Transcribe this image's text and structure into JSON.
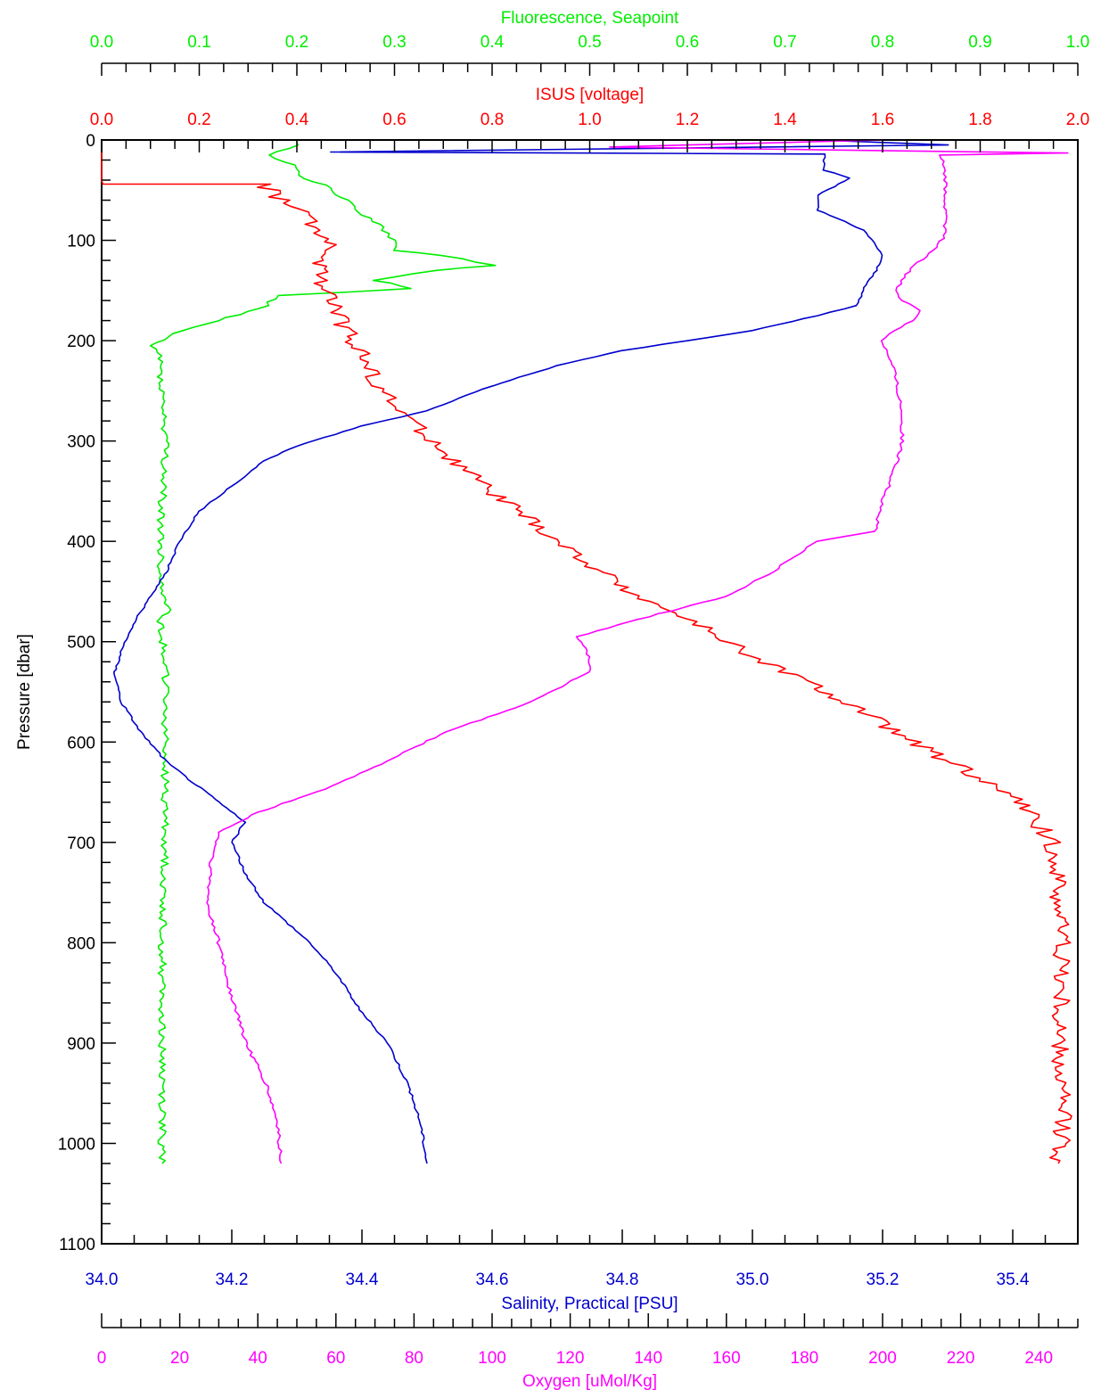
{
  "chart_data": {
    "type": "line",
    "orientation": "depth-profile",
    "grid": false,
    "yaxis": {
      "label": "Pressure [dbar]",
      "range": [
        0,
        1100
      ],
      "inverted": true,
      "ticks": [
        "0",
        "100",
        "200",
        "300",
        "400",
        "500",
        "600",
        "700",
        "800",
        "900",
        "1000",
        "1100"
      ],
      "tick_values": [
        0,
        100,
        200,
        300,
        400,
        500,
        600,
        700,
        800,
        900,
        1000,
        1100
      ],
      "minor_step": 20
    },
    "axes": {
      "fluorescence": {
        "label": "Fluorescence, Seapoint",
        "color": "#00ee00",
        "range": [
          0,
          1
        ],
        "ticks": [
          "0.0",
          "0.1",
          "0.2",
          "0.3",
          "0.4",
          "0.5",
          "0.6",
          "0.7",
          "0.8",
          "0.9",
          "1.0"
        ],
        "tick_values": [
          0,
          0.1,
          0.2,
          0.3,
          0.4,
          0.5,
          0.6,
          0.7,
          0.8,
          0.9,
          1.0
        ],
        "minor_step": 0.025
      },
      "isus": {
        "label": "ISUS [voltage]",
        "color": "#ff0000",
        "range": [
          0,
          2
        ],
        "ticks": [
          "0.0",
          "0.2",
          "0.4",
          "0.6",
          "0.8",
          "1.0",
          "1.2",
          "1.4",
          "1.6",
          "1.8",
          "2.0"
        ],
        "tick_values": [
          0,
          0.2,
          0.4,
          0.6,
          0.8,
          1.0,
          1.2,
          1.4,
          1.6,
          1.8,
          2.0
        ],
        "minor_step": 0.05
      },
      "salinity": {
        "label": "Salinity, Practical [PSU]",
        "color": "#0000cc",
        "range": [
          34.0,
          35.5
        ],
        "ticks": [
          "34.0",
          "34.2",
          "34.4",
          "34.6",
          "34.8",
          "35.0",
          "35.2",
          "35.4"
        ],
        "tick_values": [
          34.0,
          34.2,
          34.4,
          34.6,
          34.8,
          35.0,
          35.2,
          35.4
        ],
        "minor_step": 0.05
      },
      "oxygen": {
        "label": "Oxygen [uMol/Kg]",
        "color": "#ff00ff",
        "range": [
          0,
          250
        ],
        "ticks": [
          "0",
          "20",
          "40",
          "60",
          "80",
          "100",
          "120",
          "140",
          "160",
          "180",
          "200",
          "220",
          "240"
        ],
        "tick_values": [
          0,
          20,
          40,
          60,
          80,
          100,
          120,
          140,
          160,
          180,
          200,
          220,
          240
        ],
        "minor_step": 5
      }
    },
    "series": [
      {
        "axis": "fluorescence",
        "color": "#00ee00",
        "jitter": 0.004,
        "points": [
          [
            0.2,
            0
          ],
          [
            0.2,
            5
          ],
          [
            0.17,
            15
          ],
          [
            0.2,
            25
          ],
          [
            0.2,
            35
          ],
          [
            0.23,
            45
          ],
          [
            0.25,
            60
          ],
          [
            0.27,
            75
          ],
          [
            0.29,
            90
          ],
          [
            0.3,
            100
          ],
          [
            0.3,
            110
          ],
          [
            0.35,
            115
          ],
          [
            0.4,
            125
          ],
          [
            0.34,
            130
          ],
          [
            0.28,
            140
          ],
          [
            0.32,
            148
          ],
          [
            0.18,
            155
          ],
          [
            0.17,
            165
          ],
          [
            0.12,
            180
          ],
          [
            0.08,
            190
          ],
          [
            0.05,
            205
          ],
          [
            0.06,
            215
          ],
          [
            0.06,
            230
          ],
          [
            0.065,
            300
          ],
          [
            0.06,
            400
          ],
          [
            0.06,
            440
          ],
          [
            0.065,
            455
          ],
          [
            0.07,
            465
          ],
          [
            0.06,
            480
          ],
          [
            0.065,
            515
          ],
          [
            0.065,
            600
          ],
          [
            0.065,
            700
          ],
          [
            0.062,
            800
          ],
          [
            0.062,
            900
          ],
          [
            0.062,
            1000
          ],
          [
            0.062,
            1020
          ]
        ]
      },
      {
        "axis": "isus",
        "color": "#ff0000",
        "jitter": 0.02,
        "points": [
          [
            0,
            10
          ],
          [
            0,
            44
          ],
          [
            0.33,
            44
          ],
          [
            0.37,
            60
          ],
          [
            0.42,
            75
          ],
          [
            0.44,
            90
          ],
          [
            0.47,
            110
          ],
          [
            0.44,
            120
          ],
          [
            0.45,
            140
          ],
          [
            0.47,
            160
          ],
          [
            0.5,
            190
          ],
          [
            0.53,
            210
          ],
          [
            0.55,
            230
          ],
          [
            0.59,
            260
          ],
          [
            0.66,
            290
          ],
          [
            0.72,
            320
          ],
          [
            0.8,
            350
          ],
          [
            0.88,
            380
          ],
          [
            0.96,
            410
          ],
          [
            1.05,
            440
          ],
          [
            1.12,
            460
          ],
          [
            1.21,
            480
          ],
          [
            1.3,
            505
          ],
          [
            1.4,
            530
          ],
          [
            1.48,
            550
          ],
          [
            1.56,
            570
          ],
          [
            1.66,
            600
          ],
          [
            1.78,
            630
          ],
          [
            1.88,
            660
          ],
          [
            1.95,
            700
          ],
          [
            1.97,
            800
          ],
          [
            1.96,
            900
          ],
          [
            1.97,
            1000
          ],
          [
            1.96,
            1020
          ]
        ]
      },
      {
        "axis": "salinity",
        "color": "#0000cc",
        "jitter": 0.002,
        "points": [
          [
            35.1,
            0
          ],
          [
            35.3,
            5
          ],
          [
            34.35,
            12
          ],
          [
            35.11,
            14
          ],
          [
            35.11,
            30
          ],
          [
            35.15,
            38
          ],
          [
            35.1,
            55
          ],
          [
            35.1,
            70
          ],
          [
            35.13,
            78
          ],
          [
            35.17,
            90
          ],
          [
            35.19,
            105
          ],
          [
            35.2,
            115
          ],
          [
            35.19,
            130
          ],
          [
            35.17,
            150
          ],
          [
            35.16,
            165
          ],
          [
            35.1,
            175
          ],
          [
            35.0,
            190
          ],
          [
            34.9,
            200
          ],
          [
            34.8,
            210
          ],
          [
            34.7,
            225
          ],
          [
            34.6,
            245
          ],
          [
            34.5,
            270
          ],
          [
            34.4,
            285
          ],
          [
            34.3,
            305
          ],
          [
            34.25,
            320
          ],
          [
            34.2,
            345
          ],
          [
            34.15,
            370
          ],
          [
            34.12,
            400
          ],
          [
            34.1,
            430
          ],
          [
            34.07,
            460
          ],
          [
            34.05,
            480
          ],
          [
            34.03,
            510
          ],
          [
            34.02,
            530
          ],
          [
            34.03,
            560
          ],
          [
            34.06,
            590
          ],
          [
            34.1,
            620
          ],
          [
            34.14,
            640
          ],
          [
            34.18,
            660
          ],
          [
            34.22,
            680
          ],
          [
            34.2,
            700
          ],
          [
            34.22,
            730
          ],
          [
            34.25,
            760
          ],
          [
            34.32,
            800
          ],
          [
            34.36,
            830
          ],
          [
            34.4,
            870
          ],
          [
            34.44,
            900
          ],
          [
            34.47,
            940
          ],
          [
            34.49,
            980
          ],
          [
            34.5,
            1020
          ]
        ]
      },
      {
        "axis": "oxygen",
        "color": "#ff00ff",
        "jitter": 0.5,
        "points": [
          [
            200,
            0
          ],
          [
            130,
            7
          ],
          [
            247,
            13
          ],
          [
            215,
            15
          ],
          [
            216,
            40
          ],
          [
            216,
            70
          ],
          [
            216,
            95
          ],
          [
            213,
            110
          ],
          [
            208,
            125
          ],
          [
            205,
            140
          ],
          [
            203,
            150
          ],
          [
            205,
            160
          ],
          [
            210,
            170
          ],
          [
            208,
            180
          ],
          [
            203,
            190
          ],
          [
            200,
            200
          ],
          [
            203,
            230
          ],
          [
            205,
            270
          ],
          [
            205,
            300
          ],
          [
            203,
            330
          ],
          [
            200,
            360
          ],
          [
            198,
            390
          ],
          [
            183,
            400
          ],
          [
            172,
            430
          ],
          [
            160,
            455
          ],
          [
            140,
            475
          ],
          [
            122,
            495
          ],
          [
            125,
            515
          ],
          [
            125,
            530
          ],
          [
            110,
            560
          ],
          [
            88,
            590
          ],
          [
            70,
            625
          ],
          [
            55,
            650
          ],
          [
            40,
            670
          ],
          [
            30,
            690
          ],
          [
            28,
            720
          ],
          [
            27,
            760
          ],
          [
            30,
            800
          ],
          [
            33,
            850
          ],
          [
            37,
            900
          ],
          [
            42,
            940
          ],
          [
            45,
            980
          ],
          [
            46,
            1020
          ]
        ]
      }
    ]
  }
}
